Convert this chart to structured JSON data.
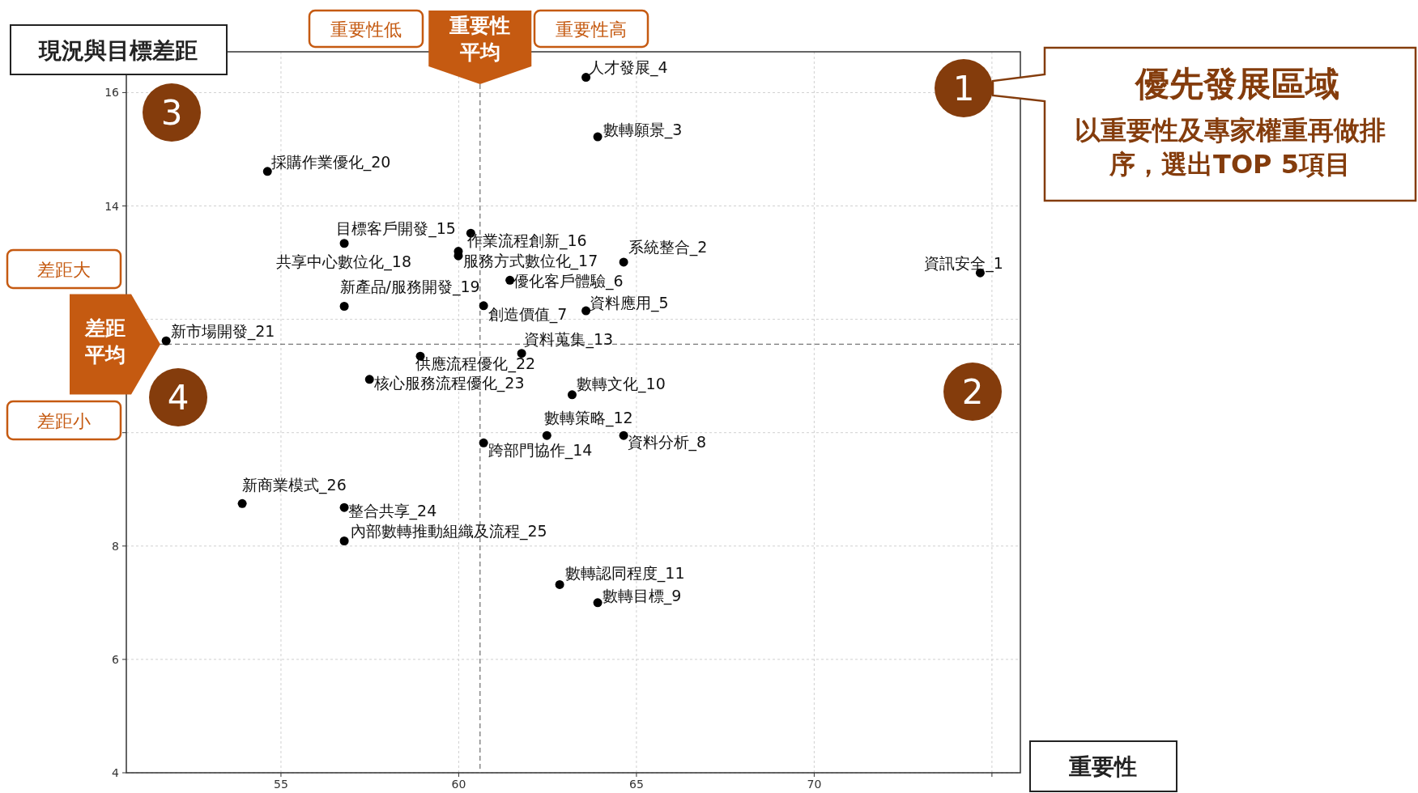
{
  "chart_data": {
    "type": "scatter",
    "xlabel": "重要性",
    "ylabel": "現況與目標差距",
    "xlim": [
      50.65,
      75.8
    ],
    "ylim": [
      4,
      16.72
    ],
    "xticks": [
      55,
      60,
      65,
      70,
      {
        "value": 75,
        "label": null
      }
    ],
    "yticks": [
      4,
      6,
      8,
      {
        "value": 10,
        "label": null
      },
      {
        "value": 12,
        "label": null
      },
      14,
      16
    ],
    "grid": true,
    "marker": "circle",
    "ref_lines": [
      {
        "axis": "x",
        "value": 60.6,
        "label": "重要性平均",
        "color": "#777777",
        "line_style": "dashed"
      },
      {
        "axis": "y",
        "value": 11.56,
        "label": "差距平均",
        "color": "#777777",
        "line_style": "dashed"
      }
    ],
    "series": [
      {
        "name": "資訊安全_1",
        "color": "#000000",
        "x": [
          74.67
        ],
        "values": [
          12.82
        ]
      },
      {
        "name": "系統整合_2",
        "color": "#000000",
        "x": [
          64.64
        ],
        "values": [
          13.01
        ]
      },
      {
        "name": "數轉願景_3",
        "color": "#000000",
        "x": [
          63.91
        ],
        "values": [
          15.22
        ]
      },
      {
        "name": "人才發展_4",
        "color": "#000000",
        "x": [
          63.58
        ],
        "values": [
          16.27
        ]
      },
      {
        "name": "資料應用_5",
        "color": "#000000",
        "x": [
          63.58
        ],
        "values": [
          12.15
        ]
      },
      {
        "name": "優化客戶體驗_6",
        "color": "#000000",
        "x": [
          61.44
        ],
        "values": [
          12.69
        ]
      },
      {
        "name": "創造價值_7",
        "color": "#000000",
        "x": [
          60.7
        ],
        "values": [
          12.24
        ]
      },
      {
        "name": "資料分析_8",
        "color": "#000000",
        "x": [
          64.64
        ],
        "values": [
          9.95
        ]
      },
      {
        "name": "數轉目標_9",
        "color": "#000000",
        "x": [
          63.91
        ],
        "values": [
          7.0
        ]
      },
      {
        "name": "數轉文化_10",
        "color": "#000000",
        "x": [
          63.19
        ],
        "values": [
          10.67
        ]
      },
      {
        "name": "數轉認同程度_11",
        "color": "#000000",
        "x": [
          62.84
        ],
        "values": [
          7.32
        ]
      },
      {
        "name": "數轉策略_12",
        "color": "#000000",
        "x": [
          62.48
        ],
        "values": [
          9.95
        ]
      },
      {
        "name": "資料蒐集_13",
        "color": "#000000",
        "x": [
          61.77
        ],
        "values": [
          11.4
        ]
      },
      {
        "name": "跨部門協作_14",
        "color": "#000000",
        "x": [
          60.7
        ],
        "values": [
          9.82
        ]
      },
      {
        "name": "目標客戶開發_15",
        "color": "#000000",
        "x": [
          59.99
        ],
        "values": [
          13.2
        ]
      },
      {
        "name": "作業流程創新_16",
        "color": "#000000",
        "x": [
          60.34
        ],
        "values": [
          13.52
        ]
      },
      {
        "name": "服務方式數位化_17",
        "color": "#000000",
        "x": [
          59.99
        ],
        "values": [
          13.12
        ]
      },
      {
        "name": "共享中心數位化_18",
        "color": "#000000",
        "x": [
          56.78
        ],
        "values": [
          13.34
        ]
      },
      {
        "name": "新產品/服務開發_19",
        "color": "#000000",
        "x": [
          56.78
        ],
        "values": [
          12.23
        ]
      },
      {
        "name": "採購作業優化_20",
        "color": "#000000",
        "x": [
          54.62
        ],
        "values": [
          14.61
        ]
      },
      {
        "name": "新市場開發_21",
        "color": "#000000",
        "x": [
          51.77
        ],
        "values": [
          11.62
        ]
      },
      {
        "name": "供應流程優化_22",
        "color": "#000000",
        "x": [
          58.92
        ],
        "values": [
          11.35
        ]
      },
      {
        "name": "核心服務流程優化_23",
        "color": "#000000",
        "x": [
          57.49
        ],
        "values": [
          10.94
        ]
      },
      {
        "name": "整合共享_24",
        "color": "#000000",
        "x": [
          56.78
        ],
        "values": [
          8.68
        ]
      },
      {
        "name": "內部數轉推動組織及流程_25",
        "color": "#000000",
        "x": [
          56.78
        ],
        "values": [
          8.09
        ]
      },
      {
        "name": "新商業模式_26",
        "color": "#000000",
        "x": [
          53.91
        ],
        "values": [
          8.75
        ]
      }
    ],
    "annotations": [
      "重要性低",
      "重要性高",
      "差距大",
      "差距小",
      "1",
      "2",
      "3",
      "4",
      "優先發展區域",
      "以重要性及專家權重再做排序，選出TOP 5項目"
    ]
  }
}
